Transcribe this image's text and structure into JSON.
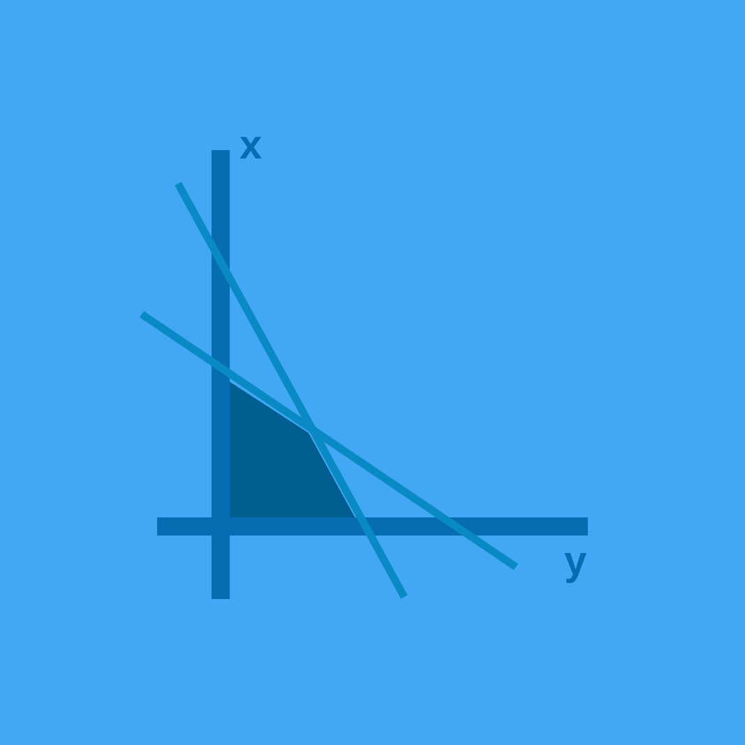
{
  "diagram": {
    "axis_vertical_label": "x",
    "axis_horizontal_label": "y",
    "colors": {
      "background": "#42a8f5",
      "axes": "#066db3",
      "constraint_lines": "#0a8ac4",
      "feasible_region": "#025e91",
      "region_edge": "#42a8f5"
    }
  }
}
